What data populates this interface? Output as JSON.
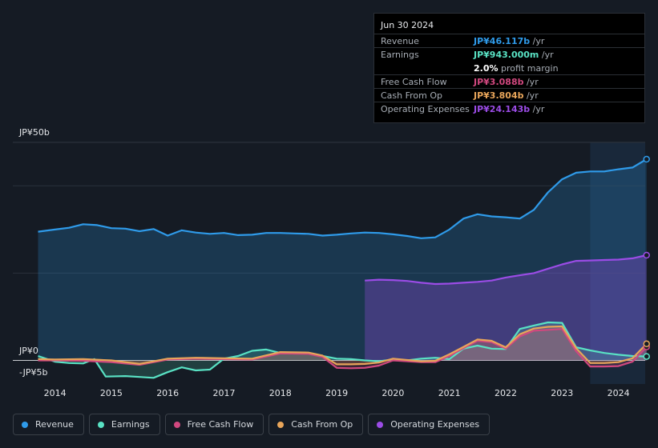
{
  "chart_data": {
    "type": "area",
    "title": "",
    "y_axis_labels": {
      "top": "JP¥50b",
      "zero": "JP¥0",
      "bottom": "-JP¥5b"
    },
    "ylim": [
      -5,
      50
    ],
    "xlim": [
      2013.7,
      2024.5
    ],
    "x_ticks": [
      "2014",
      "2015",
      "2016",
      "2017",
      "2018",
      "2019",
      "2020",
      "2021",
      "2022",
      "2023",
      "2024"
    ],
    "highlight_from": 2023.5,
    "series": [
      {
        "name": "Revenue",
        "color": "#2f9bea",
        "fill": true,
        "x": [
          2013.7,
          2014.0,
          2014.25,
          2014.5,
          2014.75,
          2015.0,
          2015.25,
          2015.5,
          2015.75,
          2016.0,
          2016.25,
          2016.5,
          2016.75,
          2017.0,
          2017.25,
          2017.5,
          2017.75,
          2018.0,
          2018.25,
          2018.5,
          2018.75,
          2019.0,
          2019.25,
          2019.5,
          2019.75,
          2020.0,
          2020.25,
          2020.5,
          2020.75,
          2021.0,
          2021.25,
          2021.5,
          2021.75,
          2022.0,
          2022.25,
          2022.5,
          2022.75,
          2023.0,
          2023.25,
          2023.5,
          2023.75,
          2024.0,
          2024.25,
          2024.5
        ],
        "y": [
          29.5,
          30.0,
          30.4,
          31.2,
          31.0,
          30.3,
          30.2,
          29.6,
          30.1,
          28.6,
          29.8,
          29.3,
          29.0,
          29.2,
          28.7,
          28.8,
          29.2,
          29.2,
          29.1,
          29.0,
          28.6,
          28.8,
          29.1,
          29.3,
          29.2,
          28.9,
          28.5,
          28.0,
          28.2,
          30.0,
          32.5,
          33.5,
          33.0,
          32.8,
          32.5,
          34.5,
          38.5,
          41.5,
          43.0,
          43.3,
          43.3,
          43.8,
          44.2,
          46.1
        ]
      },
      {
        "name": "Operating Expenses",
        "color": "#9b4ce6",
        "fill": true,
        "x": [
          2019.5,
          2019.75,
          2020.0,
          2020.25,
          2020.5,
          2020.75,
          2021.0,
          2021.25,
          2021.5,
          2021.75,
          2022.0,
          2022.25,
          2022.5,
          2022.75,
          2023.0,
          2023.25,
          2023.5,
          2023.75,
          2024.0,
          2024.25,
          2024.5
        ],
        "y": [
          18.3,
          18.5,
          18.4,
          18.2,
          17.8,
          17.5,
          17.6,
          17.8,
          18.0,
          18.3,
          19.0,
          19.5,
          20.0,
          21.0,
          22.0,
          22.8,
          22.9,
          23.0,
          23.1,
          23.4,
          24.1
        ]
      },
      {
        "name": "Earnings",
        "color": "#59e2c4",
        "fill": false,
        "x": [
          2013.7,
          2014.0,
          2014.25,
          2014.5,
          2014.7,
          2014.9,
          2015.25,
          2015.5,
          2015.75,
          2016.0,
          2016.25,
          2016.5,
          2016.75,
          2017.0,
          2017.25,
          2017.5,
          2017.75,
          2018.0,
          2018.25,
          2018.5,
          2018.75,
          2019.0,
          2019.25,
          2019.5,
          2019.75,
          2020.0,
          2020.25,
          2020.5,
          2020.75,
          2021.0,
          2021.25,
          2021.5,
          2021.75,
          2022.0,
          2022.25,
          2022.5,
          2022.75,
          2023.0,
          2023.25,
          2023.5,
          2023.75,
          2024.0,
          2024.25,
          2024.5
        ],
        "y": [
          1.0,
          -0.3,
          -0.6,
          -0.7,
          0.3,
          -3.7,
          -3.6,
          -3.8,
          -4.0,
          -2.7,
          -1.6,
          -2.3,
          -2.1,
          0.4,
          1.0,
          2.2,
          2.5,
          1.7,
          1.8,
          1.7,
          1.0,
          0.4,
          0.3,
          0.0,
          -0.2,
          0.2,
          0.0,
          0.4,
          0.6,
          0.3,
          2.7,
          3.4,
          2.7,
          2.6,
          7.2,
          8.0,
          8.7,
          8.6,
          3.0,
          2.3,
          1.7,
          1.3,
          1.0,
          0.9
        ]
      },
      {
        "name": "Free Cash Flow",
        "color": "#d1487f",
        "fill": false,
        "x": [
          2013.7,
          2014.0,
          2014.5,
          2015.0,
          2015.5,
          2016.0,
          2016.5,
          2017.0,
          2017.5,
          2018.0,
          2018.5,
          2018.75,
          2019.0,
          2019.25,
          2019.5,
          2019.75,
          2020.0,
          2020.5,
          2020.75,
          2021.0,
          2021.25,
          2021.5,
          2021.75,
          2022.0,
          2022.25,
          2022.5,
          2022.75,
          2023.0,
          2023.25,
          2023.5,
          2023.75,
          2024.0,
          2024.25,
          2024.5
        ],
        "y": [
          0.0,
          0.0,
          -0.1,
          -0.4,
          -1.0,
          0.2,
          0.4,
          0.3,
          0.2,
          1.6,
          1.5,
          0.8,
          -1.7,
          -1.8,
          -1.7,
          -1.2,
          0.0,
          -0.4,
          -0.4,
          1.0,
          2.8,
          4.5,
          4.2,
          2.7,
          5.5,
          6.8,
          7.0,
          7.2,
          2.1,
          -1.4,
          -1.4,
          -1.3,
          -0.3,
          3.1
        ]
      },
      {
        "name": "Cash From Op",
        "color": "#e8a55a",
        "fill": false,
        "x": [
          2013.7,
          2014.0,
          2014.5,
          2015.0,
          2015.5,
          2016.0,
          2016.5,
          2017.0,
          2017.5,
          2018.0,
          2018.5,
          2018.75,
          2019.0,
          2019.25,
          2019.5,
          2019.75,
          2020.0,
          2020.5,
          2020.75,
          2021.0,
          2021.25,
          2021.5,
          2021.75,
          2022.0,
          2022.25,
          2022.5,
          2022.75,
          2023.0,
          2023.25,
          2023.5,
          2023.75,
          2024.0,
          2024.25,
          2024.5
        ],
        "y": [
          0.3,
          0.2,
          0.3,
          0.0,
          -0.8,
          0.4,
          0.6,
          0.5,
          0.4,
          1.9,
          1.8,
          1.1,
          -0.9,
          -0.9,
          -0.8,
          -0.5,
          0.4,
          -0.2,
          -0.1,
          1.4,
          3.1,
          4.8,
          4.5,
          3.0,
          6.0,
          7.3,
          7.7,
          7.8,
          2.8,
          -0.6,
          -0.6,
          -0.4,
          0.5,
          3.8
        ]
      }
    ]
  },
  "tooltip": {
    "date": "Jun 30 2024",
    "rows": [
      {
        "label": "Revenue",
        "value": "JP¥46.117b",
        "unit": " /yr",
        "color": "#2f9bea"
      },
      {
        "label": "Earnings",
        "value": "JP¥943.000m",
        "unit": " /yr",
        "color": "#59e2c4"
      },
      {
        "label": "",
        "value": "2.0%",
        "unit": " profit margin",
        "color": "#ffffff"
      },
      {
        "label": "Free Cash Flow",
        "value": "JP¥3.088b",
        "unit": " /yr",
        "color": "#d1487f"
      },
      {
        "label": "Cash From Op",
        "value": "JP¥3.804b",
        "unit": " /yr",
        "color": "#e8a55a"
      },
      {
        "label": "Operating Expenses",
        "value": "JP¥24.143b",
        "unit": " /yr",
        "color": "#9b4ce6"
      }
    ]
  },
  "legend": [
    {
      "label": "Revenue",
      "color": "#2f9bea"
    },
    {
      "label": "Earnings",
      "color": "#59e2c4"
    },
    {
      "label": "Free Cash Flow",
      "color": "#d1487f"
    },
    {
      "label": "Cash From Op",
      "color": "#e8a55a"
    },
    {
      "label": "Operating Expenses",
      "color": "#9b4ce6"
    }
  ]
}
